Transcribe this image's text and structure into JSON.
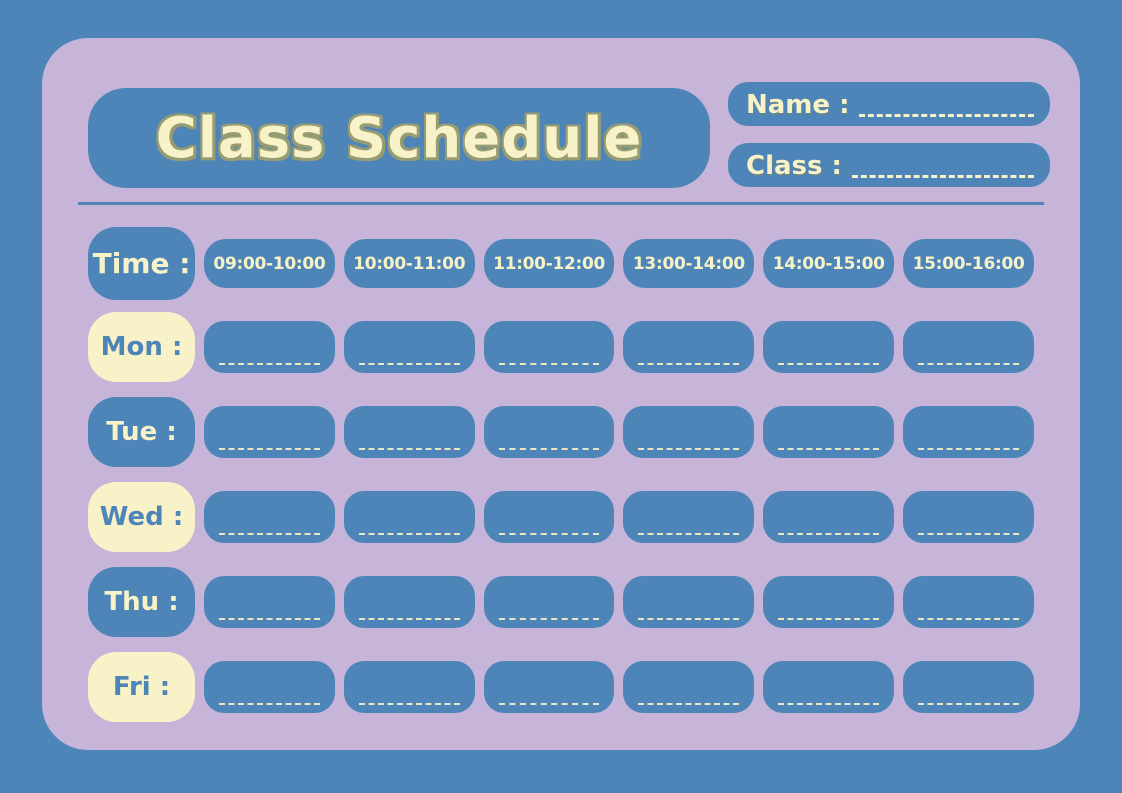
{
  "title": "Class Schedule",
  "fields": {
    "name_label": "Name :",
    "class_label": "Class :"
  },
  "schedule": {
    "time_label": "Time :",
    "time_slots": [
      "09:00-10:00",
      "10:00-11:00",
      "11:00-12:00",
      "13:00-14:00",
      "14:00-15:00",
      "15:00-16:00"
    ],
    "days": [
      {
        "key": "mon",
        "label": "Mon :",
        "variant": "cream"
      },
      {
        "key": "tue",
        "label": "Tue :",
        "variant": "blue"
      },
      {
        "key": "wed",
        "label": "Wed :",
        "variant": "cream"
      },
      {
        "key": "thu",
        "label": "Thu :",
        "variant": "blue"
      },
      {
        "key": "fri",
        "label": "Fri :",
        "variant": "cream"
      }
    ]
  },
  "colors": {
    "blue": "#4d85b8",
    "lavender": "#c6b5d9",
    "cream": "#f7f2c7",
    "dash": "#e9e6c3",
    "shadow": "#979c72"
  }
}
